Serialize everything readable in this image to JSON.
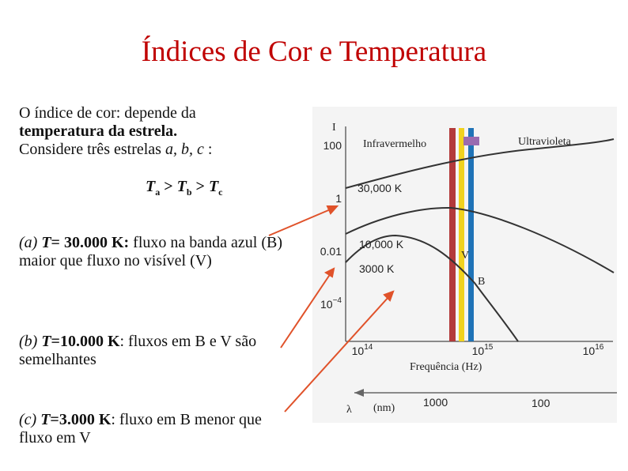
{
  "title": "Índices de Cor e Temperatura",
  "intro": {
    "line1": "O índice de cor: depende da",
    "bold": "temperatura da estrela.",
    "line3": "Considere três estrelas ",
    "stars": "a, b, c",
    "colon": " :"
  },
  "relation": {
    "t1": "T",
    "s1": "a",
    "op1": " > ",
    "t2": "T",
    "s2": "b",
    "op2": " > ",
    "t3": "T",
    "s3": "c"
  },
  "items": [
    {
      "label": "(a) ",
      "t": "T",
      "temp": "= 30.000 K:",
      "text": " fluxo na banda azul (B) maior que fluxo no visível (V)"
    },
    {
      "label": "(b) ",
      "t": "T",
      "temp": "=10.000 K",
      "text": ": fluxos em B e V são semelhantes"
    },
    {
      "label": "(c) ",
      "t": "T",
      "temp": "=3.000 K",
      "text": ": fluxo em B menor que fluxo em V"
    }
  ],
  "figure": {
    "y_axis_label": "I",
    "y_ticks": [
      "100",
      "1",
      "0.01",
      {
        "base": "10",
        "exp": "−4"
      }
    ],
    "x_ticks": [
      {
        "base": "10",
        "exp": "14"
      },
      {
        "base": "10",
        "exp": "15"
      },
      {
        "base": "10",
        "exp": "16"
      }
    ],
    "regions": [
      "Infravermelho",
      "Ultravioleta"
    ],
    "curves": [
      "30,000 K",
      "10,000 K",
      "3000 K"
    ],
    "bands": [
      "V",
      "B"
    ],
    "x_axis_label": "Frequência (Hz)",
    "lambda": "λ",
    "lambda_unit": "(nm)",
    "lambda_ticks": [
      "1000",
      "100"
    ]
  }
}
